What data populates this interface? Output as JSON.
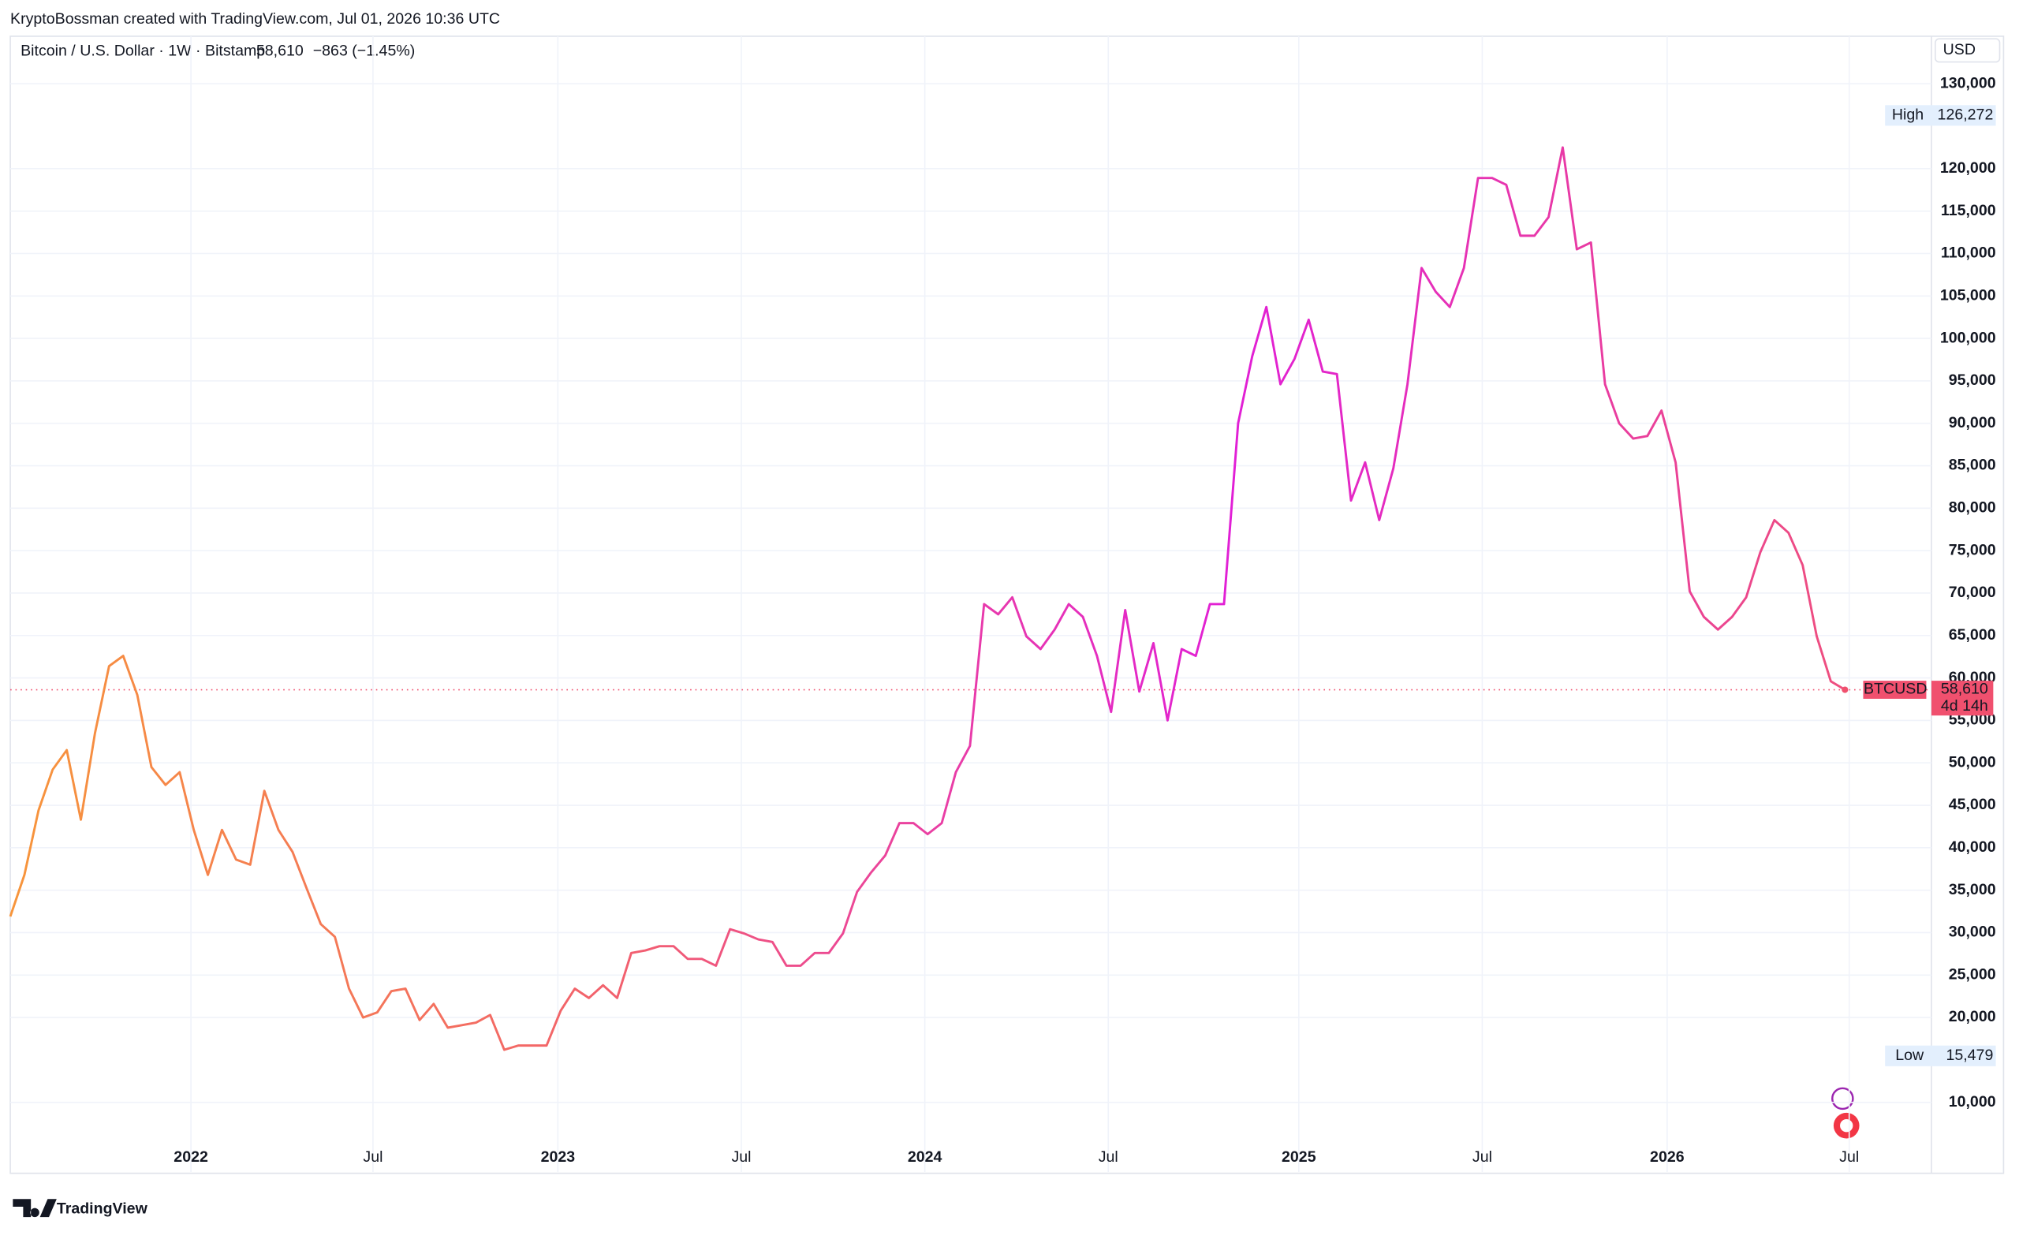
{
  "header": {
    "attribution": "KryptoBossman created with TradingView.com, Jul 01, 2026 10:36 UTC"
  },
  "chart_data": {
    "type": "line",
    "title": "Bitcoin / U.S. Dollar · 1W · Bitstamp",
    "last_price": {
      "value": 58610,
      "label": "58,610"
    },
    "change": "−863 (−1.45%)",
    "currency": "USD",
    "price_color": "#f0506e",
    "series": [
      {
        "name": "BTCUSD",
        "gradient": [
          "#f7953b",
          "#f2606e",
          "#e11fd6",
          "#ee4f7e"
        ],
        "values": [
          31900,
          36800,
          44400,
          49200,
          51500,
          43300,
          53500,
          61400,
          62600,
          58000,
          49500,
          47400,
          48900,
          42100,
          36800,
          42100,
          38600,
          38000,
          46700,
          42100,
          39500,
          35200,
          31000,
          29500,
          23400,
          20000,
          20600,
          23100,
          23400,
          19700,
          21600,
          18800,
          19100,
          19400,
          20300,
          16200,
          16700,
          16700,
          16700,
          20800,
          23400,
          22300,
          23800,
          22300,
          27600,
          27900,
          28400,
          28400,
          26900,
          26900,
          26100,
          30400,
          29900,
          29200,
          28900,
          26100,
          26100,
          27600,
          27600,
          29900,
          34800,
          37100,
          39100,
          42900,
          42900,
          41600,
          42900,
          48900,
          52000,
          68700,
          67500,
          69500,
          64900,
          63400,
          65700,
          68700,
          67200,
          62600,
          56000,
          68000,
          58400,
          64100,
          55000,
          63400,
          62600,
          68700,
          68700,
          90000,
          97900,
          103700,
          94600,
          97600,
          102200,
          96100,
          95800,
          80900,
          85400,
          78600,
          84700,
          94600,
          108300,
          105500,
          103700,
          108300,
          118900,
          118900,
          118100,
          112100,
          112100,
          114300,
          122500,
          110500,
          111300,
          94600,
          90000,
          88200,
          88500,
          91500,
          85400,
          70200,
          67200,
          65700,
          67200,
          69500,
          74800,
          78600,
          77100,
          73300,
          64900,
          59600,
          58610
        ]
      }
    ],
    "xlim": [
      0,
      136
    ],
    "xticks": [
      {
        "value": 12.8,
        "label": "2022"
      },
      {
        "value": 25.7,
        "label": "Jul"
      },
      {
        "value": 38.8,
        "label": "2023"
      },
      {
        "value": 51.8,
        "label": "Jul"
      },
      {
        "value": 64.8,
        "label": "2024"
      },
      {
        "value": 77.8,
        "label": "Jul"
      },
      {
        "value": 91.3,
        "label": "2025"
      },
      {
        "value": 104.3,
        "label": "Jul"
      },
      {
        "value": 117.4,
        "label": "2026"
      },
      {
        "value": 130.3,
        "label": "Jul"
      }
    ],
    "ylim": [
      1800,
      135600
    ],
    "yticks": [
      {
        "value": 10000,
        "label": "10,000"
      },
      {
        "value": 20000,
        "label": "20,000"
      },
      {
        "value": 25000,
        "label": "25,000"
      },
      {
        "value": 30000,
        "label": "30,000"
      },
      {
        "value": 35000,
        "label": "35,000"
      },
      {
        "value": 40000,
        "label": "40,000"
      },
      {
        "value": 45000,
        "label": "45,000"
      },
      {
        "value": 50000,
        "label": "50,000"
      },
      {
        "value": 55000,
        "label": "55,000"
      },
      {
        "value": 60000,
        "label": "60,000"
      },
      {
        "value": 65000,
        "label": "65,000"
      },
      {
        "value": 70000,
        "label": "70,000"
      },
      {
        "value": 75000,
        "label": "75,000"
      },
      {
        "value": 80000,
        "label": "80,000"
      },
      {
        "value": 85000,
        "label": "85,000"
      },
      {
        "value": 90000,
        "label": "90,000"
      },
      {
        "value": 95000,
        "label": "95,000"
      },
      {
        "value": 100000,
        "label": "100,000"
      },
      {
        "value": 105000,
        "label": "105,000"
      },
      {
        "value": 110000,
        "label": "110,000"
      },
      {
        "value": 115000,
        "label": "115,000"
      },
      {
        "value": 120000,
        "label": "120,000"
      },
      {
        "value": 130000,
        "label": "130,000"
      }
    ],
    "grid": true,
    "high": {
      "name": "High",
      "price": {
        "value": 126272,
        "label": "126,272"
      }
    },
    "low": {
      "name": "Low",
      "price": {
        "value": 15479,
        "label": "15,479"
      }
    },
    "countdown": "4d 14h"
  },
  "footer": {
    "logo": "TradingView"
  }
}
